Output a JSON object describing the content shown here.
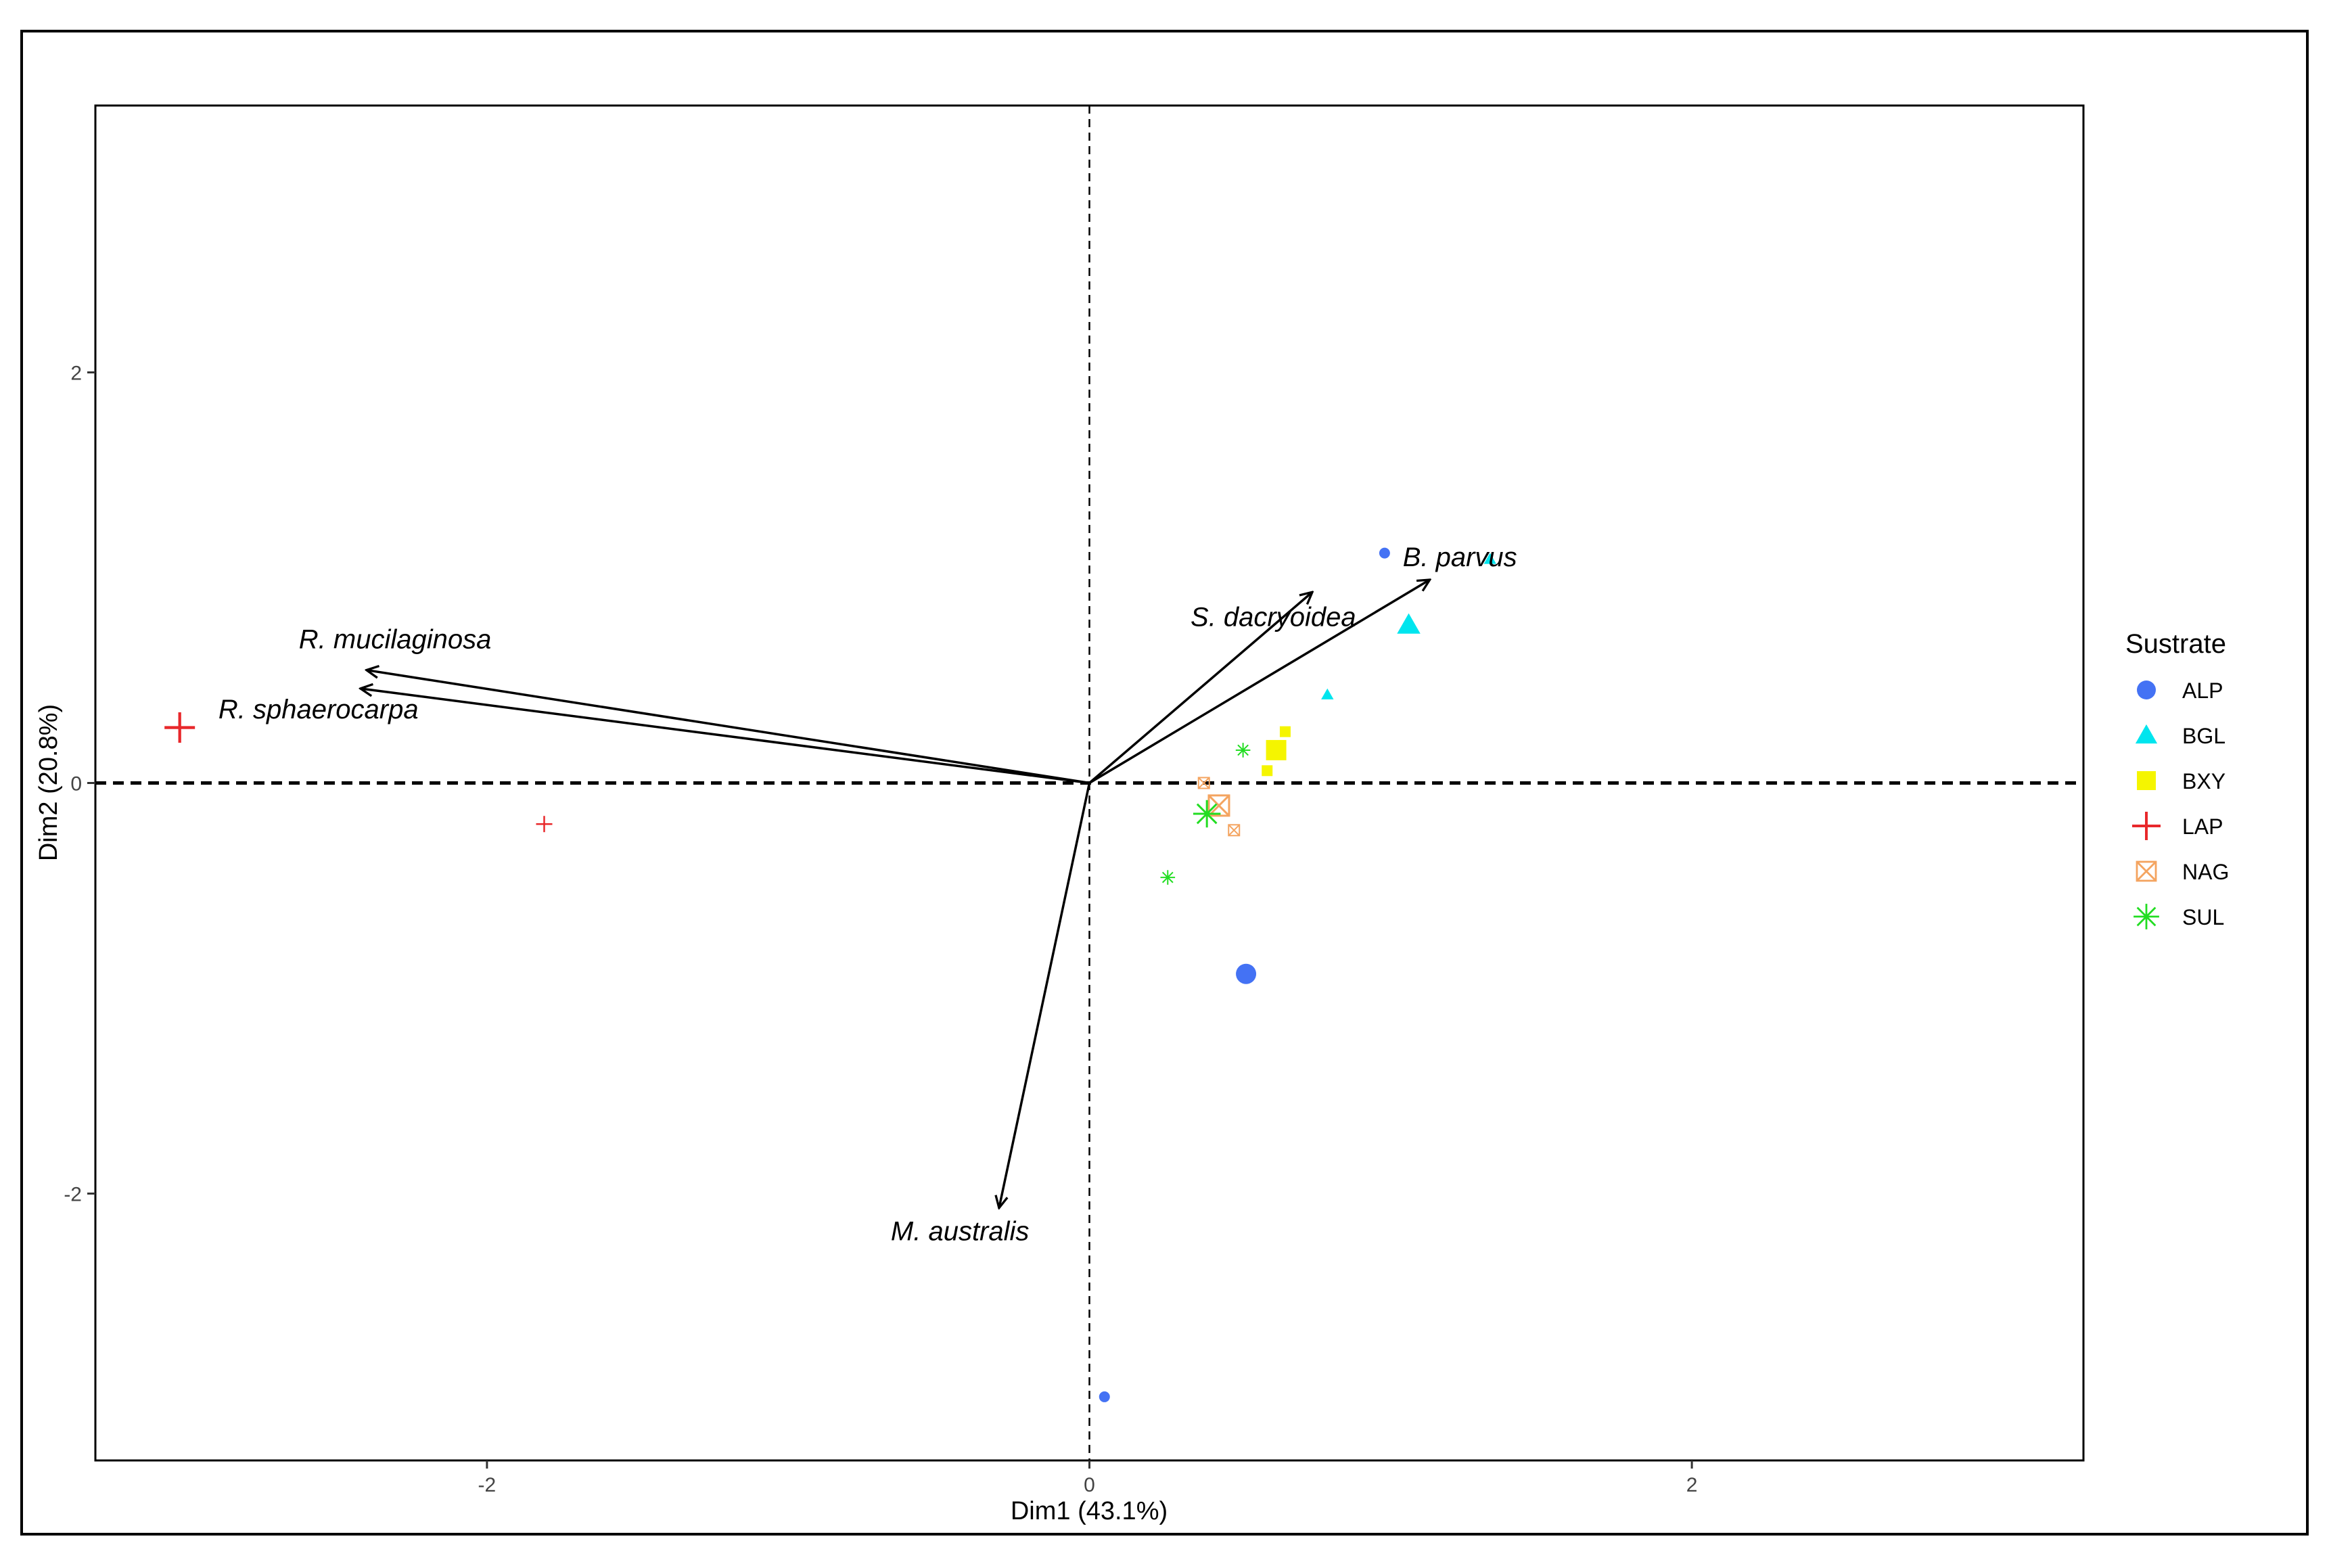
{
  "chart_data": {
    "type": "scatter",
    "title": "",
    "xlabel": "Dim1 (43.1%)",
    "ylabel": "Dim2 (20.8%)",
    "xlim": [
      -3.3,
      3.3
    ],
    "ylim": [
      -3.3,
      3.3
    ],
    "xticks": [
      -2,
      0,
      2
    ],
    "yticks": [
      -2,
      0,
      2
    ],
    "grid": false,
    "legend": {
      "title": "Sustrate",
      "position": "right",
      "entries": [
        {
          "label": "ALP",
          "color": "#4472F4",
          "shape": "circle"
        },
        {
          "label": "BGL",
          "color": "#00E5EE",
          "shape": "triangle"
        },
        {
          "label": "BXY",
          "color": "#F5F500",
          "shape": "square"
        },
        {
          "label": "LAP",
          "color": "#E8282B",
          "shape": "plus"
        },
        {
          "label": "NAG",
          "color": "#F4A460",
          "shape": "boxx"
        },
        {
          "label": "SUL",
          "color": "#22DD22",
          "shape": "star"
        }
      ]
    },
    "vectors": [
      {
        "label": "R. mucilaginosa",
        "x": -2.4,
        "y": 0.55
      },
      {
        "label": "R. sphaerocarpa",
        "x": -2.42,
        "y": 0.46
      },
      {
        "label": "S. dacryoidea",
        "x": 0.74,
        "y": 0.93
      },
      {
        "label": "B. parvus",
        "x": 1.13,
        "y": 0.99
      },
      {
        "label": "M. australis",
        "x": -0.3,
        "y": -2.07
      }
    ],
    "series": [
      {
        "group": "ALP",
        "points": [
          {
            "x": 0.98,
            "y": 1.12,
            "size": "small"
          },
          {
            "x": 0.52,
            "y": -0.93,
            "size": "large"
          },
          {
            "x": 0.05,
            "y": -2.99,
            "size": "small"
          }
        ]
      },
      {
        "group": "BGL",
        "points": [
          {
            "x": 1.33,
            "y": 1.09,
            "size": "small"
          },
          {
            "x": 1.06,
            "y": 0.77,
            "size": "large"
          },
          {
            "x": 0.79,
            "y": 0.43,
            "size": "small"
          }
        ]
      },
      {
        "group": "BXY",
        "points": [
          {
            "x": 0.65,
            "y": 0.25,
            "size": "small"
          },
          {
            "x": 0.62,
            "y": 0.16,
            "size": "large"
          },
          {
            "x": 0.59,
            "y": 0.06,
            "size": "small"
          }
        ]
      },
      {
        "group": "LAP",
        "points": [
          {
            "x": -3.02,
            "y": 0.27,
            "size": "large"
          },
          {
            "x": -1.81,
            "y": -0.2,
            "size": "small"
          }
        ]
      },
      {
        "group": "NAG",
        "points": [
          {
            "x": 0.38,
            "y": 0.0,
            "size": "small"
          },
          {
            "x": 0.43,
            "y": -0.11,
            "size": "large"
          },
          {
            "x": 0.48,
            "y": -0.23,
            "size": "small"
          }
        ]
      },
      {
        "group": "SUL",
        "points": [
          {
            "x": 0.51,
            "y": 0.16,
            "size": "small"
          },
          {
            "x": 0.39,
            "y": -0.15,
            "size": "large"
          },
          {
            "x": 0.26,
            "y": -0.46,
            "size": "small"
          }
        ]
      }
    ]
  }
}
